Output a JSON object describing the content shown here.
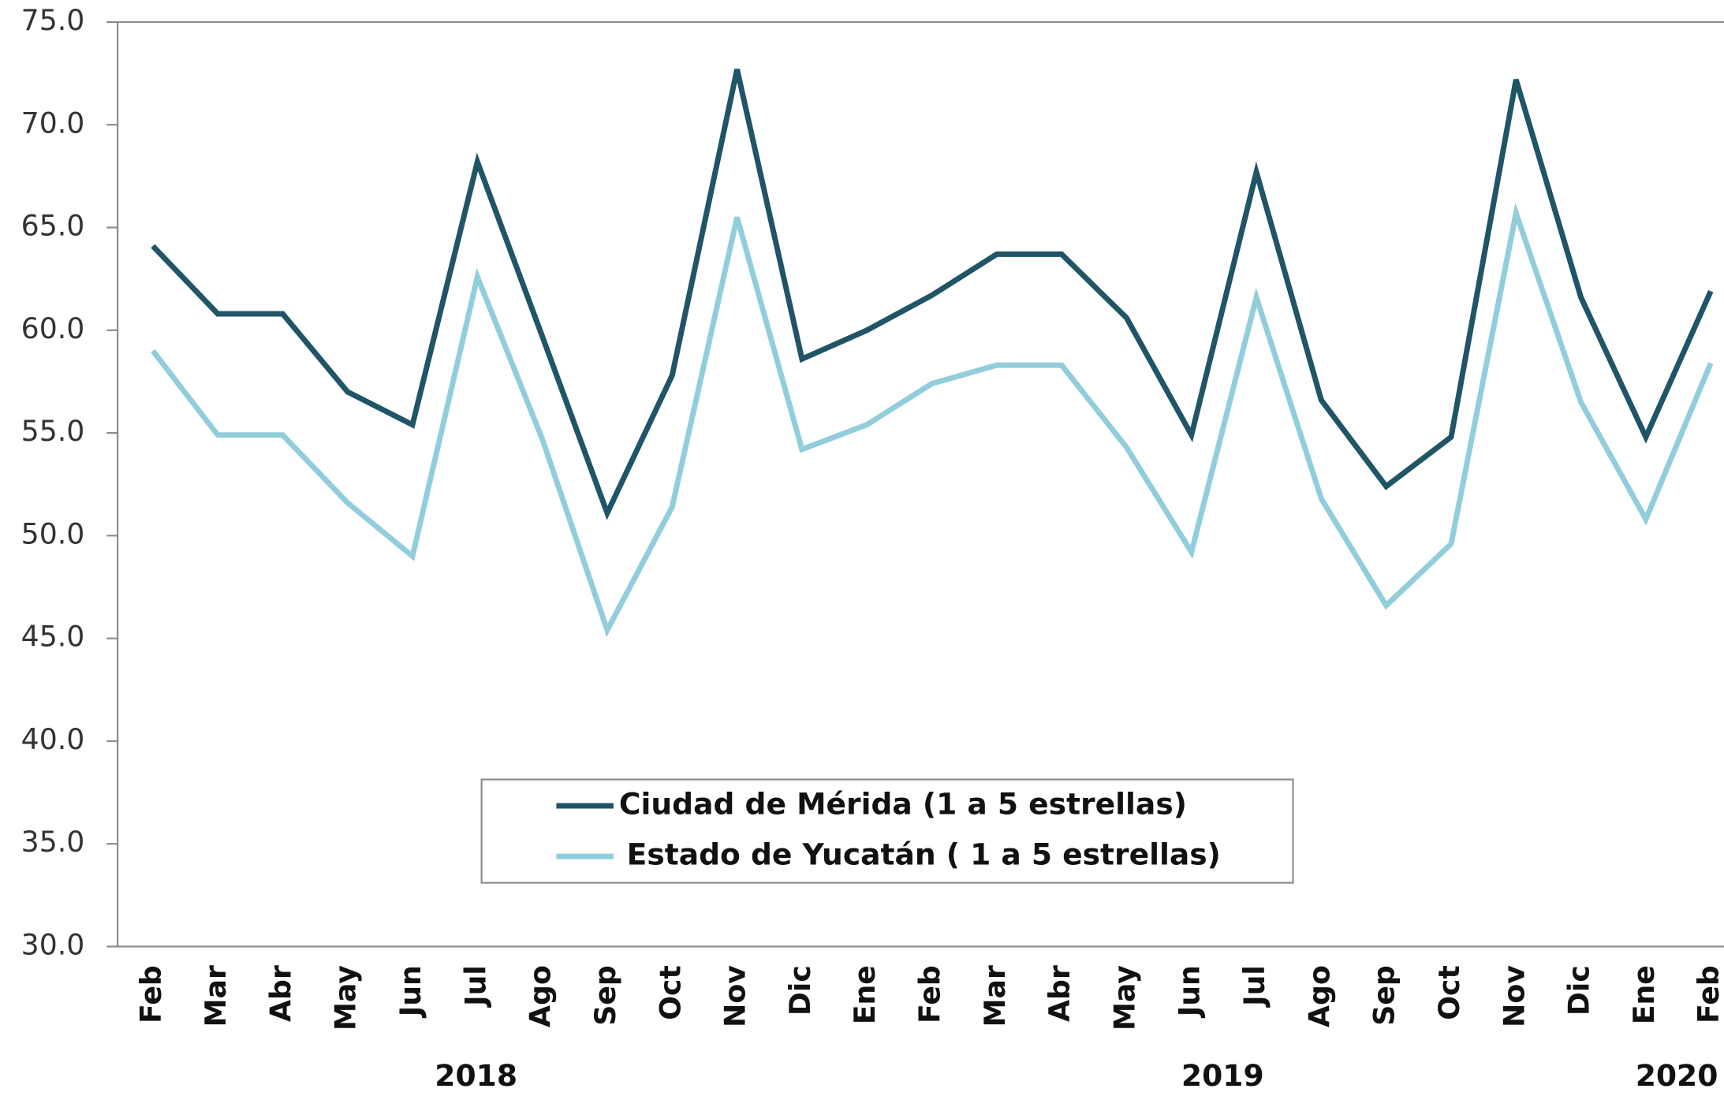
{
  "chart_data": {
    "type": "line",
    "categories": [
      "Feb",
      "Mar",
      "Abr",
      "May",
      "Jun",
      "Jul",
      "Ago",
      "Sep",
      "Oct",
      "Nov",
      "Dic",
      "Ene",
      "Feb",
      "Mar",
      "Abr",
      "May",
      "Jun",
      "Jul",
      "Ago",
      "Sep",
      "Oct",
      "Nov",
      "Dic",
      "Ene",
      "Feb"
    ],
    "years": [
      "2018",
      "2019",
      "2020"
    ],
    "series": [
      {
        "name": "Ciudad de Mérida (1 a 5 estrellas)",
        "color": "#1f5566",
        "values": [
          64.1,
          60.8,
          60.8,
          57.0,
          55.4,
          68.2,
          59.7,
          51.1,
          57.8,
          72.7,
          58.6,
          60.0,
          61.7,
          63.7,
          63.7,
          60.6,
          54.9,
          67.7,
          56.6,
          52.4,
          54.8,
          72.2,
          61.6,
          54.8,
          61.9
        ]
      },
      {
        "name": "Estado de Yucatán ( 1 a 5 estrellas)",
        "color": "#92cddc",
        "values": [
          59.0,
          54.9,
          54.9,
          51.6,
          49.0,
          62.6,
          54.7,
          45.4,
          51.4,
          65.5,
          54.2,
          55.4,
          57.4,
          58.3,
          58.3,
          54.3,
          49.2,
          61.6,
          51.8,
          46.6,
          49.6,
          65.7,
          56.5,
          50.8,
          58.4
        ]
      }
    ],
    "ylim": [
      30,
      75
    ],
    "yticks": [
      {
        "value": 30,
        "label": "30.0"
      },
      {
        "value": 35,
        "label": "35.0"
      },
      {
        "value": 40,
        "label": "40.0"
      },
      {
        "value": 45,
        "label": "45.0"
      },
      {
        "value": 50,
        "label": "50.0"
      },
      {
        "value": 55,
        "label": "55.0"
      },
      {
        "value": 60,
        "label": "60.0"
      },
      {
        "value": 65,
        "label": "65.0"
      },
      {
        "value": 70,
        "label": "70.0"
      },
      {
        "value": 75,
        "label": "75.0"
      }
    ],
    "grid": false
  }
}
